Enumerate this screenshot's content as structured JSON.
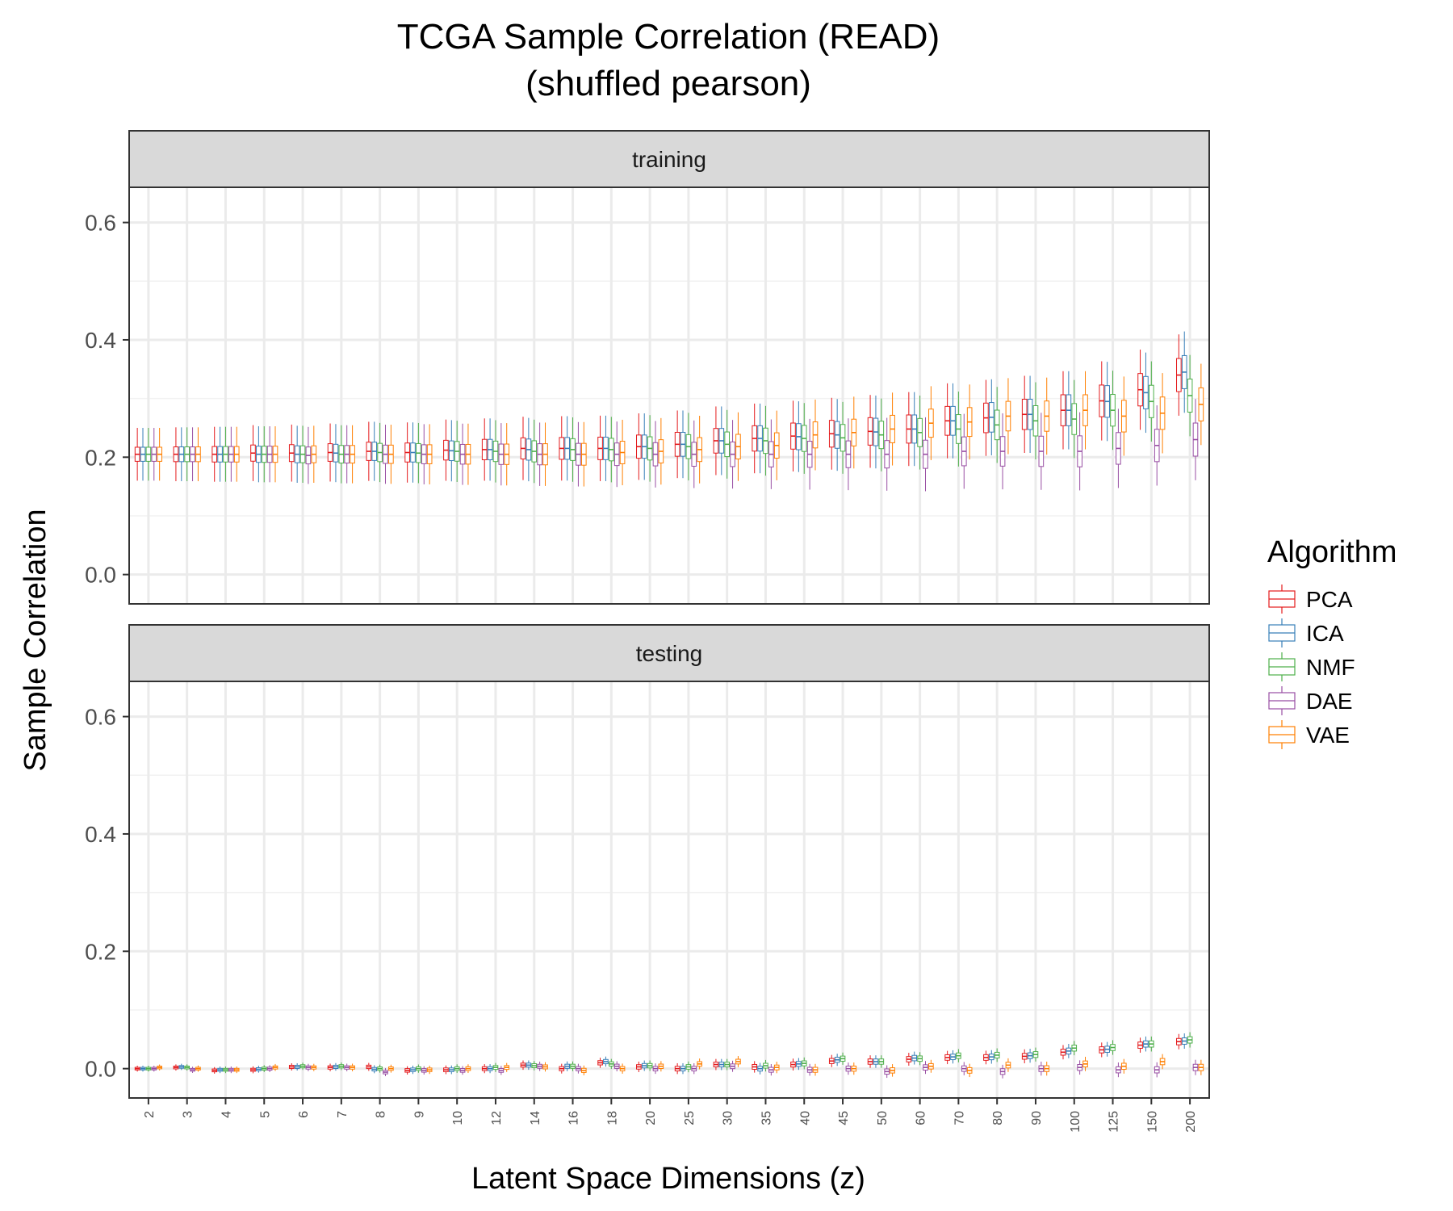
{
  "chart_data": {
    "type": "box",
    "title": "TCGA Sample Correlation (READ)",
    "subtitle": "(shuffled pearson)",
    "xlabel": "Latent Space Dimensions (z)",
    "ylabel": "Sample Correlation",
    "ylim": [
      -0.05,
      0.66
    ],
    "yticks": [
      "0.0",
      "0.2",
      "0.4",
      "0.6"
    ],
    "ytick_values": [
      0.0,
      0.2,
      0.4,
      0.6
    ],
    "grid": true,
    "categories": [
      "2",
      "3",
      "4",
      "5",
      "6",
      "7",
      "8",
      "9",
      "10",
      "12",
      "14",
      "16",
      "18",
      "20",
      "25",
      "30",
      "35",
      "40",
      "45",
      "50",
      "60",
      "70",
      "80",
      "90",
      "100",
      "125",
      "150",
      "200"
    ],
    "legend": {
      "title": "Algorithm",
      "position": "right",
      "entries": [
        {
          "name": "PCA",
          "color": "#e41a1c"
        },
        {
          "name": "ICA",
          "color": "#377eb8"
        },
        {
          "name": "NMF",
          "color": "#4daf4a"
        },
        {
          "name": "DAE",
          "color": "#984ea3"
        },
        {
          "name": "VAE",
          "color": "#ff7f00"
        }
      ]
    },
    "facets": [
      {
        "name": "training",
        "medians": {
          "PCA": [
            0.205,
            0.205,
            0.205,
            0.207,
            0.207,
            0.208,
            0.21,
            0.208,
            0.212,
            0.213,
            0.215,
            0.215,
            0.215,
            0.218,
            0.222,
            0.228,
            0.232,
            0.236,
            0.24,
            0.244,
            0.248,
            0.262,
            0.267,
            0.273,
            0.28,
            0.296,
            0.315,
            0.34
          ],
          "ICA": [
            0.205,
            0.205,
            0.205,
            0.205,
            0.205,
            0.207,
            0.21,
            0.208,
            0.211,
            0.213,
            0.213,
            0.215,
            0.215,
            0.218,
            0.222,
            0.228,
            0.232,
            0.235,
            0.238,
            0.243,
            0.248,
            0.262,
            0.268,
            0.273,
            0.28,
            0.295,
            0.31,
            0.345
          ],
          "NMF": [
            0.205,
            0.205,
            0.205,
            0.205,
            0.205,
            0.205,
            0.208,
            0.207,
            0.21,
            0.21,
            0.21,
            0.213,
            0.213,
            0.215,
            0.218,
            0.222,
            0.228,
            0.232,
            0.233,
            0.238,
            0.242,
            0.248,
            0.255,
            0.262,
            0.265,
            0.28,
            0.295,
            0.305
          ],
          "DAE": [
            0.205,
            0.205,
            0.205,
            0.205,
            0.203,
            0.205,
            0.205,
            0.205,
            0.205,
            0.205,
            0.205,
            0.205,
            0.205,
            0.205,
            0.205,
            0.205,
            0.205,
            0.205,
            0.205,
            0.205,
            0.205,
            0.21,
            0.21,
            0.21,
            0.21,
            0.215,
            0.22,
            0.23
          ],
          "VAE": [
            0.205,
            0.205,
            0.205,
            0.205,
            0.205,
            0.205,
            0.205,
            0.205,
            0.205,
            0.205,
            0.205,
            0.205,
            0.208,
            0.21,
            0.213,
            0.218,
            0.22,
            0.238,
            0.242,
            0.248,
            0.258,
            0.26,
            0.27,
            0.27,
            0.28,
            0.27,
            0.275,
            0.29
          ]
        }
      },
      {
        "name": "testing",
        "medians": {
          "PCA": [
            0.0,
            0.002,
            -0.003,
            -0.002,
            0.003,
            0.002,
            0.003,
            -0.003,
            -0.002,
            0.0,
            0.006,
            0.0,
            0.01,
            0.003,
            0.0,
            0.007,
            0.003,
            0.007,
            0.013,
            0.012,
            0.016,
            0.019,
            0.019,
            0.021,
            0.028,
            0.032,
            0.04,
            0.046
          ],
          "ICA": [
            0.0,
            0.003,
            -0.002,
            -0.001,
            0.003,
            0.003,
            -0.001,
            -0.002,
            -0.002,
            0.0,
            0.006,
            0.004,
            0.012,
            0.005,
            0.0,
            0.007,
            0.0,
            0.008,
            0.015,
            0.012,
            0.018,
            0.02,
            0.02,
            0.022,
            0.03,
            0.033,
            0.042,
            0.047
          ],
          "NMF": [
            0.0,
            0.002,
            -0.002,
            0.0,
            0.004,
            0.004,
            0.0,
            0.0,
            0.0,
            0.002,
            0.005,
            0.004,
            0.008,
            0.005,
            0.003,
            0.007,
            0.005,
            0.009,
            0.017,
            0.012,
            0.017,
            0.022,
            0.023,
            0.024,
            0.035,
            0.036,
            0.042,
            0.049
          ],
          "DAE": [
            0.0,
            -0.002,
            -0.002,
            0.0,
            0.002,
            0.002,
            -0.006,
            -0.003,
            -0.003,
            -0.003,
            0.004,
            0.0,
            0.004,
            0.0,
            0.0,
            0.004,
            -0.002,
            -0.002,
            0.0,
            -0.005,
            0.002,
            0.0,
            -0.005,
            0.0,
            0.002,
            -0.002,
            -0.002,
            0.002
          ],
          "VAE": [
            0.002,
            0.0,
            -0.002,
            0.002,
            0.002,
            0.002,
            0.0,
            -0.002,
            0.0,
            0.002,
            0.003,
            -0.003,
            0.0,
            0.004,
            0.008,
            0.012,
            0.002,
            -0.002,
            0.0,
            -0.003,
            0.004,
            -0.003,
            0.006,
            0.0,
            0.008,
            0.004,
            0.012,
            0.002
          ]
        }
      }
    ]
  }
}
